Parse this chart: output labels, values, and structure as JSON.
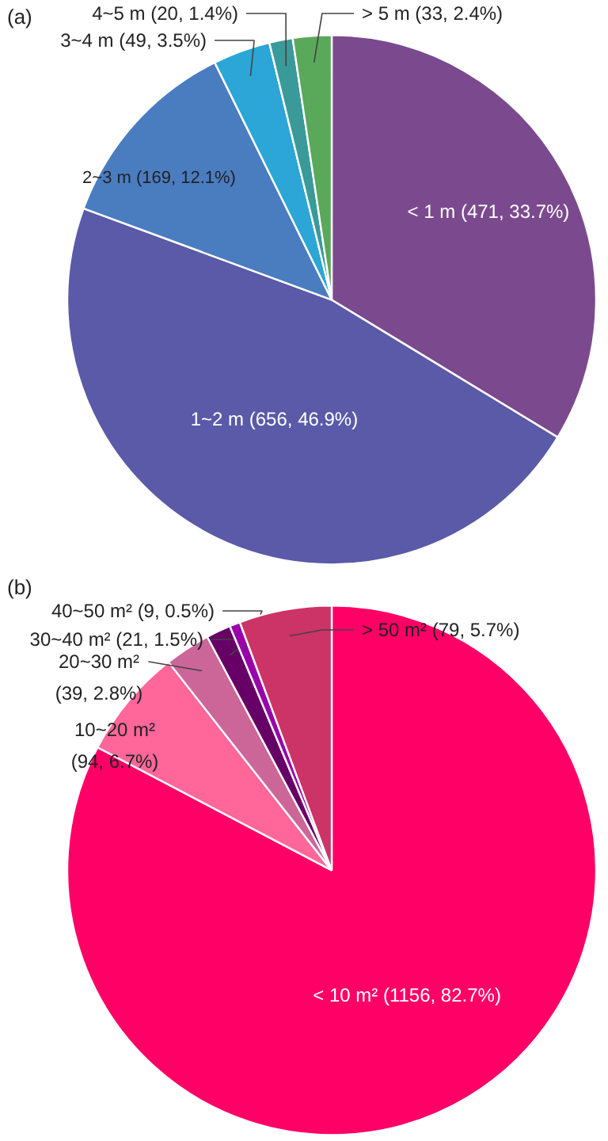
{
  "chart_data": [
    {
      "type": "pie",
      "title": "(a)",
      "categories": [
        "< 1 m (471, 33.7%)",
        "1~2 m (656, 46.9%)",
        "2~3 m (169, 12.1%)",
        "3~4 m (49, 3.5%)",
        "4~5 m (20, 1.4%)",
        "> 5 m (33, 2.4%)"
      ],
      "values": [
        471,
        656,
        169,
        49,
        20,
        33
      ],
      "colors": [
        "#7b4a8e",
        "#5a5aa8",
        "#4a7cc0",
        "#2ba6d6",
        "#3a9a9a",
        "#5aa85a"
      ]
    },
    {
      "type": "pie",
      "title": "(b)",
      "categories": [
        "< 10 m² (1156, 82.7%)",
        "10~20 m² (94, 6.7%)",
        "20~30 m² (39, 2.8%)",
        "30~40 m² (21, 1.5%)",
        "40~50 m² (9, 0.5%)",
        "> 50 m² (79, 5.7%)"
      ],
      "values": [
        1156,
        94,
        39,
        21,
        9,
        79
      ],
      "colors": [
        "#ff0066",
        "#ff6699",
        "#cc6699",
        "#660066",
        "#9900aa",
        "#cc3366"
      ]
    }
  ]
}
